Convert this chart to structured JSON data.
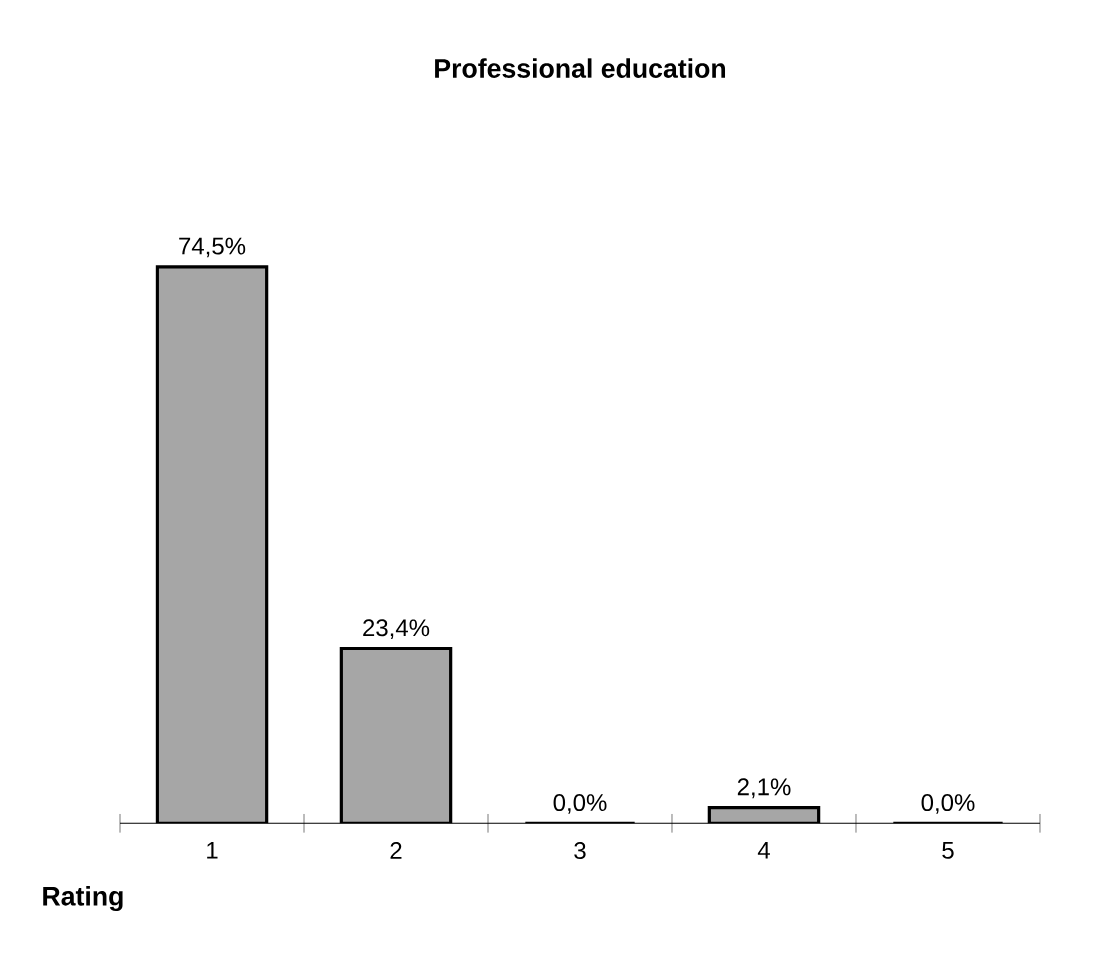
{
  "chart_data": {
    "type": "bar",
    "title": "Professional education",
    "xlabel": "Rating",
    "categories": [
      "1",
      "2",
      "3",
      "4",
      "5"
    ],
    "values": [
      74.5,
      23.4,
      0,
      2.1,
      0
    ],
    "value_labels": [
      "74,5%",
      "23,4%",
      "0,0%",
      "2,1%",
      "0,0%"
    ],
    "color": "#a6a6a6"
  }
}
